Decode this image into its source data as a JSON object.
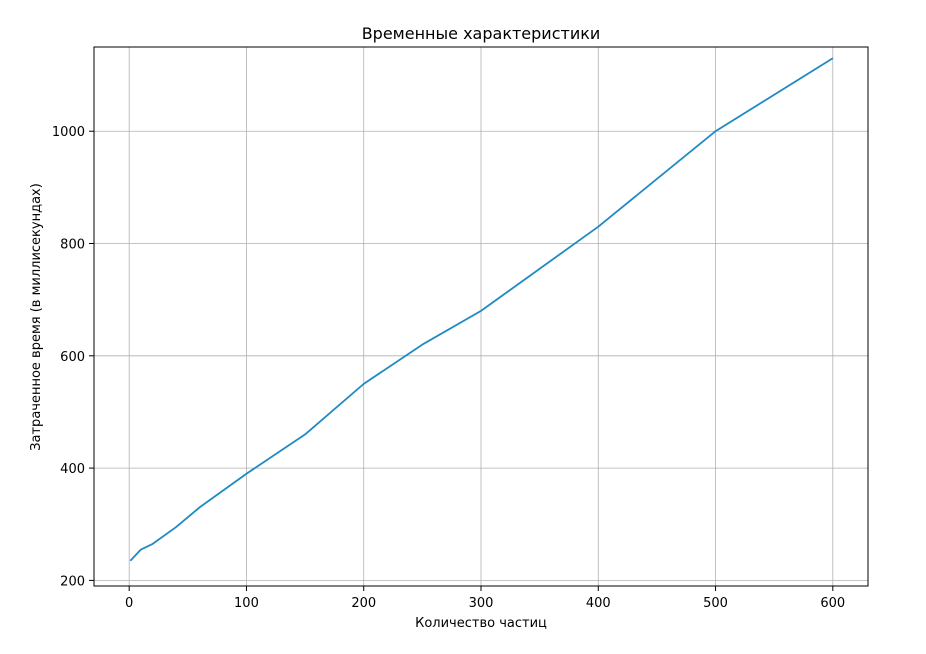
{
  "chart_data": {
    "type": "line",
    "title": "Временные характеристики",
    "xlabel": "Количество частиц",
    "ylabel": "Затраченное время (в миллисекундах)",
    "xlim": [
      -30,
      630
    ],
    "ylim": [
      190,
      1150
    ],
    "x_ticks": [
      0,
      100,
      200,
      300,
      400,
      500,
      600
    ],
    "y_ticks": [
      200,
      400,
      600,
      800,
      1000
    ],
    "grid": true,
    "series": [
      {
        "color": "#1f8ac3",
        "x": [
          1,
          10,
          20,
          40,
          60,
          100,
          150,
          200,
          250,
          300,
          400,
          500,
          600
        ],
        "y": [
          235,
          255,
          265,
          295,
          330,
          390,
          460,
          550,
          620,
          680,
          830,
          1000,
          1130
        ]
      }
    ]
  }
}
